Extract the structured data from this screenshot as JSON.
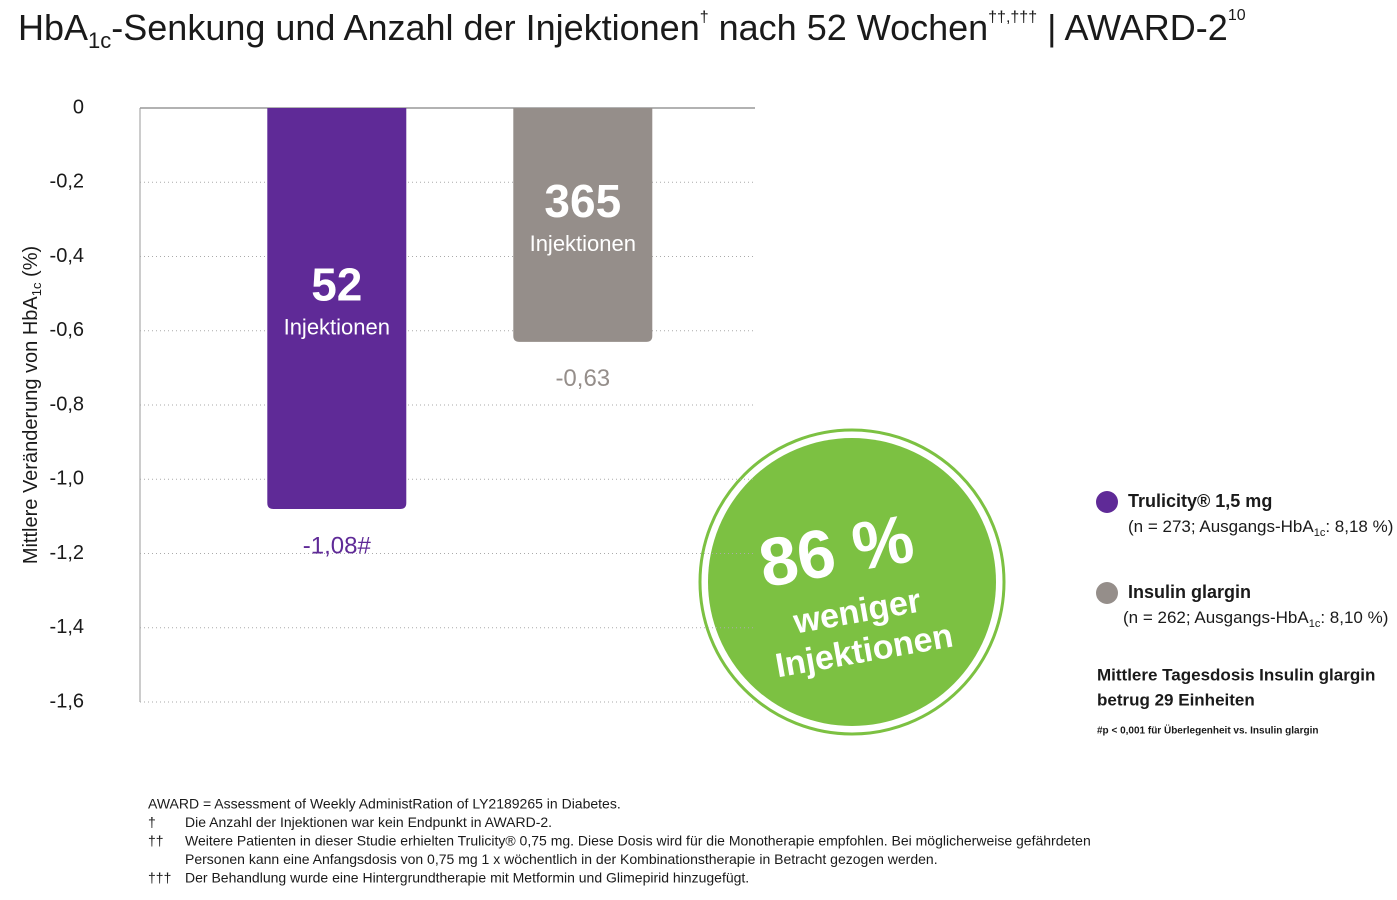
{
  "chart_data": {
    "type": "bar",
    "title_parts": [
      "HbA",
      "1c",
      "-Senkung und Anzahl der Injektionen",
      "†",
      " nach 52 Wochen",
      "††,†††",
      " | AWARD-2",
      "10"
    ],
    "y_label_parts": [
      "Mittlere Veränderung von HbA",
      "1c",
      "  (%)"
    ],
    "categories": [
      null
    ],
    "series": [
      {
        "name": "Trulicity® 1,5 mg",
        "color": "#5f2a97",
        "values": [
          -1.08
        ],
        "value_labels": [
          "-1,08#"
        ],
        "injections": 52,
        "injections_label": "Injektionen",
        "detail_parts": [
          "(n = 273; Ausgangs-HbA",
          "1c",
          ": 8,18 %)"
        ]
      },
      {
        "name": "Insulin glargin",
        "color": "#958e8a",
        "values": [
          -0.63
        ],
        "value_labels": [
          "-0,63"
        ],
        "injections": 365,
        "injections_label": "Injektionen",
        "detail_parts": [
          "(n = 262; Ausgangs-HbA",
          "1c",
          ": 8,10 %)"
        ]
      }
    ],
    "ylim": [
      -1.6,
      0
    ],
    "yticks": [
      0,
      {
        "value": -0.2,
        "label": "-0,2"
      },
      {
        "value": -0.4,
        "label": "-0,4"
      },
      {
        "value": -0.6,
        "label": "-0,6"
      },
      {
        "value": -0.8,
        "label": "-0,8"
      },
      {
        "value": -1.0,
        "label": "-1,0"
      },
      {
        "value": -1.2,
        "label": "-1,2"
      },
      {
        "value": -1.4,
        "label": "-1,4"
      },
      {
        "value": -1.6,
        "label": "-1,6"
      }
    ],
    "grid": true,
    "badge": {
      "percent": "86 %",
      "line1": "weniger",
      "line2": "Injektionen",
      "color": "#7cc142"
    },
    "notes": [
      "Mittlere Tagesdosis Insulin glargin",
      "betrug 29 Einheiten"
    ],
    "significance_note": "#p < 0,001 für Überlegenheit vs. Insulin glargin",
    "footnotes": [
      [
        "",
        "AWARD = Assessment of Weekly AdministRation of LY2189265 in Diabetes."
      ],
      [
        "†",
        "Die Anzahl der Injektionen war kein Endpunkt in AWARD-2."
      ],
      [
        "††",
        "Weitere Patienten in dieser Studie erhielten Trulicity® 0,75 mg. Diese Dosis wird für die Monotherapie empfohlen. Bei möglicherweise gefährdeten"
      ],
      [
        "",
        "Personen kann eine Anfangsdosis von 0,75 mg 1 x wöchentlich in der Kombinationstherapie in Betracht gezogen werden."
      ],
      [
        "†††",
        "Der Behandlung wurde eine Hintergrundtherapie mit Metformin und Glimepirid hinzugefügt."
      ]
    ]
  }
}
